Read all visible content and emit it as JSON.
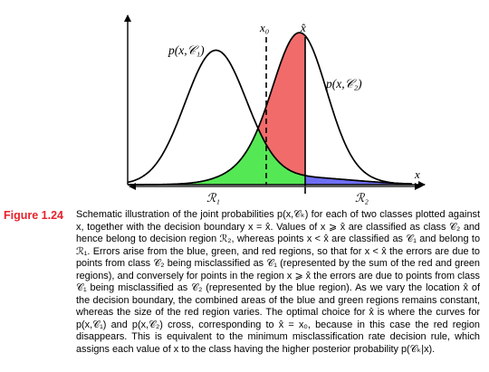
{
  "figure": {
    "labels": {
      "p1": "p(x,𝒞₁)",
      "p2": "p(x,𝒞₂)",
      "x0": "x₀",
      "xhat": "x̂",
      "x": "x",
      "r1": "ℛ₁",
      "r2": "ℛ₂"
    },
    "colors": {
      "red_region": "#f26b6b",
      "green_region": "#55e855",
      "blue_region": "#6e6ef5",
      "curve": "#000000"
    },
    "regions": [
      "red",
      "green",
      "blue"
    ],
    "boundary_style": {
      "x0": "dashed",
      "xhat": "solid"
    }
  },
  "caption": {
    "label": "Figure 1.24",
    "text": "Schematic illustration of the joint probabilities p(x,𝒞ₖ) for each of two classes plotted against x, together with the decision boundary x = x̂. Values of x ⩾ x̂ are classified as class 𝒞₂ and hence belong to decision region ℛ₂, whereas points x < x̂ are classified as 𝒞₁ and belong to ℛ₁. Errors arise from the blue, green, and red regions, so that for x < x̂ the errors are due to points from class 𝒞₂ being misclassified as 𝒞₁ (represented by the sum of the red and green regions), and conversely for points in the region x ⩾ x̂ the errors are due to points from class 𝒞₁ being misclassified as 𝒞₂ (represented by the blue region). As we vary the location x̂ of the decision boundary, the combined areas of the blue and green regions remains constant, whereas the size of the red region varies. The optimal choice for x̂ is where the curves for p(x,𝒞₁) and p(x,𝒞₂) cross, corresponding to x̂ = x₀, because in this case the red region disappears. This is equivalent to the minimum misclassification rate decision rule, which assigns each value of x to the class having the higher posterior probability p(𝒞ₖ|x)."
  }
}
